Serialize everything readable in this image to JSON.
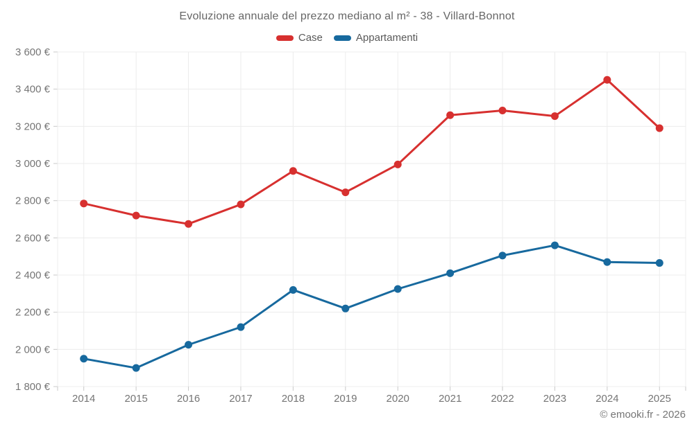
{
  "title": "Evoluzione annuale del prezzo mediano al m² - 38 - Villard-Bonnot",
  "footer": "© emooki.fr - 2026",
  "colors": {
    "case_red": "#d7302f",
    "appartamenti_blue": "#17699e",
    "title_text": "#666666",
    "tick_text": "#757575",
    "gridline": "#ececec",
    "tick_mark": "#c9c9c9",
    "background": "#ffffff"
  },
  "chart_data": {
    "type": "line",
    "title": "Evoluzione annuale del prezzo mediano al m² - 38 - Villard-Bonnot",
    "categories": [
      "2014",
      "2015",
      "2016",
      "2017",
      "2018",
      "2019",
      "2020",
      "2021",
      "2022",
      "2023",
      "2024",
      "2025"
    ],
    "series": [
      {
        "name": "Case",
        "color": "#d7302f",
        "values": [
          2785,
          2720,
          2675,
          2780,
          2960,
          2845,
          2995,
          3260,
          3285,
          3255,
          3450,
          3190
        ]
      },
      {
        "name": "Appartamenti",
        "color": "#17699e",
        "values": [
          1950,
          1900,
          2025,
          2120,
          2320,
          2220,
          2325,
          2410,
          2505,
          2560,
          2470,
          2465
        ]
      }
    ],
    "ylim": [
      1800,
      3600
    ],
    "ytick_step": 200,
    "ytick_values": [
      1800,
      2000,
      2200,
      2400,
      2600,
      2800,
      3000,
      3200,
      3400,
      3600
    ],
    "ytick_labels": [
      "1 800 €",
      "2 000 €",
      "2 200 €",
      "2 400 €",
      "2 600 €",
      "2 800 €",
      "3 000 €",
      "3 200 €",
      "3 400 €",
      "3 600 €"
    ],
    "xlabel": "",
    "ylabel": "",
    "grid": true,
    "legend_position": "top"
  }
}
